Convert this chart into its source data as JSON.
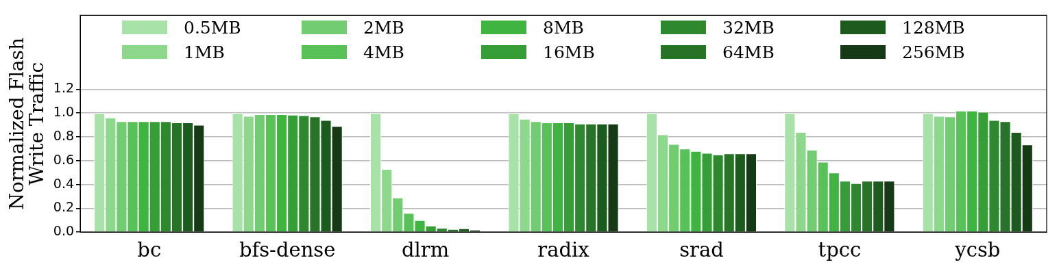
{
  "chart_data": {
    "type": "bar",
    "ylabel": "Normalized Flash\nWrite Traffic",
    "categories": [
      "bc",
      "bfs-dense",
      "dlrm",
      "radix",
      "srad",
      "tpcc",
      "ycsb"
    ],
    "series": [
      {
        "name": "0.5MB",
        "color": "#a8e2a8",
        "values": [
          1.0,
          1.0,
          1.0,
          1.0,
          1.0,
          1.0,
          1.0
        ]
      },
      {
        "name": "1MB",
        "color": "#8ed88e",
        "values": [
          0.96,
          0.975,
          0.53,
          0.95,
          0.82,
          0.84,
          0.975
        ]
      },
      {
        "name": "2MB",
        "color": "#72cd72",
        "values": [
          0.93,
          0.99,
          0.29,
          0.93,
          0.74,
          0.69,
          0.97
        ]
      },
      {
        "name": "4MB",
        "color": "#58c258",
        "values": [
          0.93,
          0.99,
          0.16,
          0.92,
          0.7,
          0.59,
          1.02
        ]
      },
      {
        "name": "8MB",
        "color": "#40b440",
        "values": [
          0.93,
          0.99,
          0.1,
          0.92,
          0.68,
          0.5,
          1.02
        ]
      },
      {
        "name": "16MB",
        "color": "#369e36",
        "values": [
          0.93,
          0.985,
          0.055,
          0.92,
          0.665,
          0.43,
          1.01
        ]
      },
      {
        "name": "32MB",
        "color": "#2e892e",
        "values": [
          0.93,
          0.98,
          0.036,
          0.91,
          0.65,
          0.41,
          0.94
        ]
      },
      {
        "name": "64MB",
        "color": "#277327",
        "values": [
          0.92,
          0.97,
          0.026,
          0.91,
          0.66,
          0.43,
          0.93
        ]
      },
      {
        "name": "128MB",
        "color": "#1d5a1d",
        "values": [
          0.92,
          0.94,
          0.032,
          0.91,
          0.66,
          0.43,
          0.84
        ]
      },
      {
        "name": "256MB",
        "color": "#153a15",
        "values": [
          0.9,
          0.89,
          0.02,
          0.91,
          0.66,
          0.43,
          0.735
        ]
      }
    ],
    "ylim": [
      0,
      1.82
    ],
    "yticks": [
      {
        "value": 0,
        "label": "0.0"
      },
      0.2,
      0.4,
      0.6,
      0.8,
      {
        "value": 1,
        "label": "1.0"
      },
      1.2
    ],
    "grid": "y",
    "legend": "top"
  }
}
